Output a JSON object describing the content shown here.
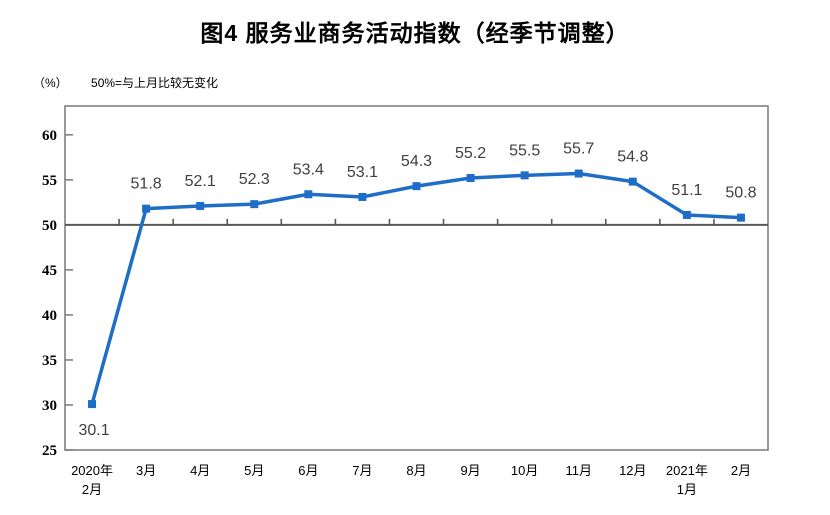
{
  "chart_data": {
    "type": "line",
    "title": "图4 服务业商务活动指数（经季节调整）",
    "unit_label": "（%）",
    "baseline_note": "50%=与上月比较无变化",
    "categories": [
      [
        "2020年",
        "2月"
      ],
      [
        "3月"
      ],
      [
        "4月"
      ],
      [
        "5月"
      ],
      [
        "6月"
      ],
      [
        "7月"
      ],
      [
        "8月"
      ],
      [
        "9月"
      ],
      [
        "10月"
      ],
      [
        "11月"
      ],
      [
        "12月"
      ],
      [
        "2021年",
        "1月"
      ],
      [
        "2月"
      ]
    ],
    "values": [
      30.1,
      51.8,
      52.1,
      52.3,
      53.4,
      53.1,
      54.3,
      55.2,
      55.5,
      55.7,
      54.8,
      51.1,
      50.8
    ],
    "yticks": [
      25,
      30,
      35,
      40,
      45,
      50,
      55,
      60
    ],
    "ylim": [
      25,
      63.2
    ],
    "baseline": 50,
    "grid": false,
    "legend": "none",
    "colors": {
      "series": "#1e6ec8",
      "data_label": "#404040",
      "axis_text": "#000000",
      "plot_border": "#808080",
      "baseline_axis": "#595959"
    }
  }
}
